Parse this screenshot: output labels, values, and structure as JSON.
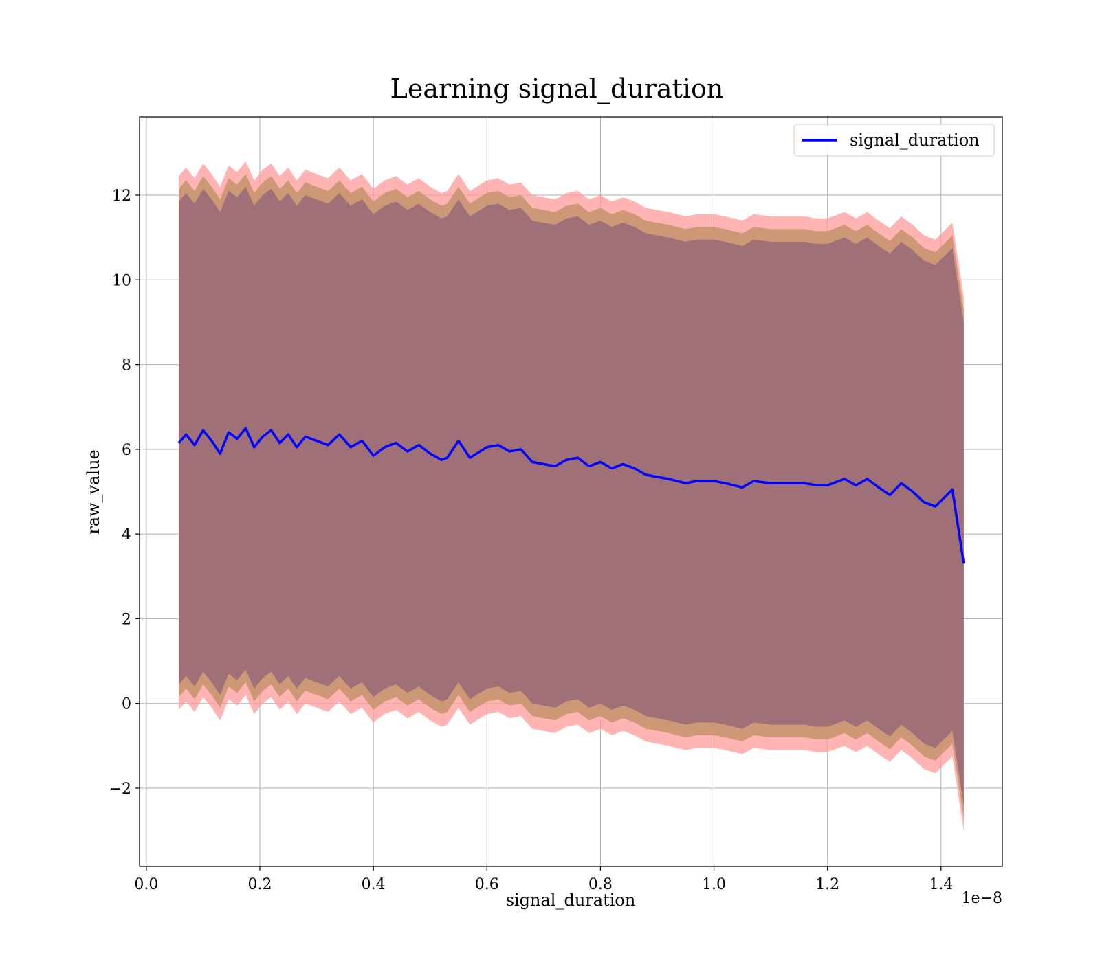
{
  "chart_data": {
    "type": "line",
    "title": "Learning signal_duration",
    "xlabel": "signal_duration",
    "ylabel": "raw_value",
    "x_offset_label": "1e−8",
    "xlim": [
      -0.012,
      1.508
    ],
    "ylim": [
      -3.85,
      13.85
    ],
    "x_ticks": [
      0.0,
      0.2,
      0.4,
      0.6,
      0.8,
      1.0,
      1.2,
      1.4
    ],
    "x_tick_labels": [
      "0.0",
      "0.2",
      "0.4",
      "0.6",
      "0.8",
      "1.0",
      "1.2",
      "1.4"
    ],
    "y_ticks": [
      -2,
      0,
      2,
      4,
      6,
      8,
      10,
      12
    ],
    "y_tick_labels": [
      "−2",
      "0",
      "2",
      "4",
      "6",
      "8",
      "10",
      "12"
    ],
    "grid": true,
    "legend_position": "top-right",
    "colors": {
      "line": "#0000ff",
      "band_outer": "#ff9999",
      "band_middle": "#c8956f",
      "band_inner": "#a07078",
      "grid": "#b0b0b0"
    },
    "series": [
      {
        "name": "signal_duration",
        "x": [
          0.057,
          0.07,
          0.085,
          0.1,
          0.115,
          0.13,
          0.145,
          0.16,
          0.175,
          0.19,
          0.205,
          0.22,
          0.235,
          0.25,
          0.265,
          0.28,
          0.3,
          0.32,
          0.34,
          0.36,
          0.38,
          0.4,
          0.42,
          0.44,
          0.46,
          0.48,
          0.5,
          0.52,
          0.53,
          0.55,
          0.57,
          0.6,
          0.62,
          0.64,
          0.66,
          0.68,
          0.7,
          0.72,
          0.74,
          0.76,
          0.78,
          0.8,
          0.82,
          0.84,
          0.86,
          0.88,
          0.9,
          0.92,
          0.95,
          0.97,
          1.0,
          1.02,
          1.05,
          1.07,
          1.1,
          1.13,
          1.16,
          1.18,
          1.2,
          1.23,
          1.25,
          1.27,
          1.29,
          1.31,
          1.33,
          1.35,
          1.37,
          1.39,
          1.42,
          1.44
        ],
        "values": [
          6.15,
          6.35,
          6.1,
          6.45,
          6.2,
          5.9,
          6.4,
          6.25,
          6.5,
          6.05,
          6.3,
          6.45,
          6.15,
          6.35,
          6.05,
          6.3,
          6.2,
          6.1,
          6.35,
          6.05,
          6.2,
          5.85,
          6.05,
          6.15,
          5.95,
          6.1,
          5.9,
          5.75,
          5.8,
          6.2,
          5.8,
          6.05,
          6.1,
          5.95,
          6.0,
          5.7,
          5.65,
          5.6,
          5.75,
          5.8,
          5.6,
          5.7,
          5.55,
          5.65,
          5.55,
          5.4,
          5.35,
          5.3,
          5.2,
          5.25,
          5.25,
          5.2,
          5.1,
          5.25,
          5.2,
          5.2,
          5.2,
          5.15,
          5.15,
          5.3,
          5.15,
          5.3,
          5.1,
          4.92,
          5.2,
          5.0,
          4.75,
          4.65,
          5.05,
          3.3
        ]
      }
    ],
    "band_half_widths": [
      6.3,
      6.0,
      5.7
    ]
  }
}
